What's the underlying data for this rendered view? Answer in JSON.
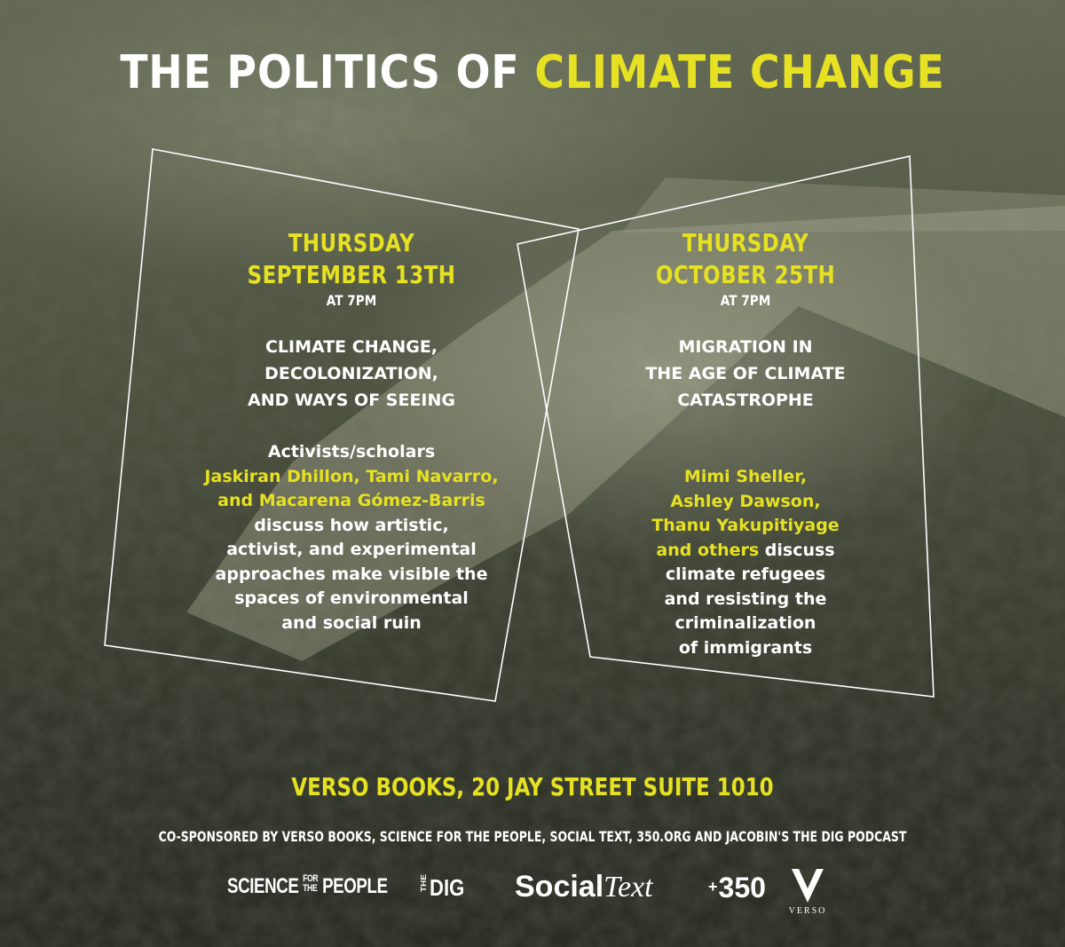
{
  "title": {
    "part1": "THE POLITICS OF",
    "part2": "CLIMATE CHANGE"
  },
  "events": [
    {
      "day": "THURSDAY",
      "date": "SEPTEMBER 13TH",
      "time": "AT 7PM",
      "talk_lines": [
        "CLIMATE CHANGE,",
        "DECOLONIZATION,",
        "AND WAYS OF SEEING"
      ],
      "intro": "Activists/scholars",
      "speakers_lines": [
        "Jaskiran Dhillon, Tami Navarro,",
        "and Macarena Gómez-Barris"
      ],
      "desc_lines": [
        "discuss how artistic,",
        "activist, and experimental",
        "approaches make visible the",
        "spaces of environmental",
        "and social ruin"
      ]
    },
    {
      "day": "THURSDAY",
      "date": "OCTOBER 25TH",
      "time": "AT 7PM",
      "talk_lines": [
        "MIGRATION IN",
        "THE AGE OF CLIMATE",
        "CATASTROPHE"
      ],
      "speakers_lines": [
        "Mimi Sheller,",
        "Ashley Dawson,",
        "Thanu Yakupitiyage",
        "and others"
      ],
      "speakers_tail": " discuss",
      "desc_lines": [
        "climate refugees",
        "and resisting the",
        "criminalization",
        "of immigrants"
      ]
    }
  ],
  "venue": "VERSO BOOKS, 20 JAY STREET SUITE 1010",
  "cosponsors": "CO-SPONSORED BY VERSO BOOKS, SCIENCE FOR THE PEOPLE, SOCIAL TEXT, 350.ORG AND JACOBIN'S THE DIG PODCAST",
  "logos": {
    "sftp": {
      "a": "SCIENCE",
      "b": "FOR",
      "c": "THE",
      "d": "PEOPLE"
    },
    "dig": {
      "the": "THE",
      "dig": "DIG"
    },
    "social_text": {
      "a": "Social",
      "b": "Text"
    },
    "three50": {
      "plus": "+",
      "num": "350"
    },
    "verso": {
      "letter": "V",
      "word": "VERSO"
    }
  },
  "colors": {
    "accent": "#e6e122",
    "text": "#ffffff",
    "background": "#4a4f3d"
  }
}
